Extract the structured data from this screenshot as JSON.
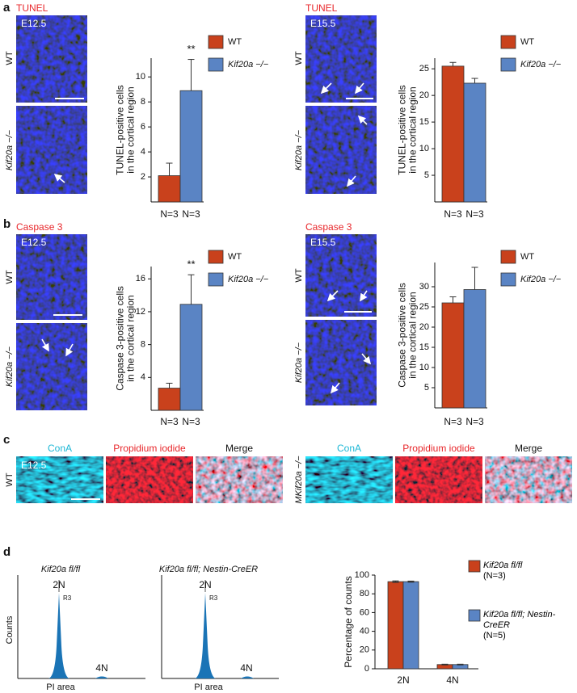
{
  "chart_data": [
    {
      "type": "bar",
      "categories": [
        "N=3",
        "N=3"
      ],
      "values": [
        2.1,
        8.9
      ],
      "errors": [
        1.0,
        2.5
      ],
      "colors": [
        "#c9411c",
        "#5a84c4"
      ],
      "legend": [
        "WT",
        "Kif20a −/−"
      ],
      "ylabel": [
        "TUNEL-positive cells",
        "in the cortical region"
      ],
      "ylim": [
        0,
        11.5
      ],
      "yticks": [
        2,
        4,
        6,
        8,
        10
      ],
      "annotation": "**"
    },
    {
      "type": "bar",
      "categories": [
        "N=3",
        "N=3"
      ],
      "values": [
        25.5,
        22.3
      ],
      "errors": [
        0.7,
        0.9
      ],
      "colors": [
        "#c9411c",
        "#5a84c4"
      ],
      "legend": [
        "WT",
        "Kif20a −/−"
      ],
      "ylabel": [
        "TUNEL-positive cells",
        "in the cortical region"
      ],
      "ylim": [
        0,
        27
      ],
      "yticks": [
        5,
        10,
        15,
        20,
        25
      ]
    },
    {
      "type": "bar",
      "categories": [
        "N=3",
        "N=3"
      ],
      "values": [
        2.7,
        12.9
      ],
      "errors": [
        0.6,
        3.6
      ],
      "colors": [
        "#c9411c",
        "#5a84c4"
      ],
      "legend": [
        "WT",
        "Kif20a −/−"
      ],
      "ylabel": [
        "Caspase 3-positive cells",
        "in the cortical region"
      ],
      "ylim": [
        0,
        17.5
      ],
      "yticks": [
        4,
        8,
        12,
        16
      ],
      "annotation": "**"
    },
    {
      "type": "bar",
      "categories": [
        "N=3",
        "N=3"
      ],
      "values": [
        26,
        29.3
      ],
      "errors": [
        1.5,
        5.5
      ],
      "colors": [
        "#c9411c",
        "#5a84c4"
      ],
      "legend": [
        "WT",
        "Kif20a −/−"
      ],
      "ylabel": [
        "Caspase 3-positive cells",
        "in the cortical region"
      ],
      "ylim": [
        0,
        36
      ],
      "yticks": [
        5,
        10,
        15,
        20,
        25,
        30
      ]
    },
    {
      "type": "bar",
      "categories": [
        "2N",
        "4N"
      ],
      "series": [
        {
          "name": "Kif20a fl/fl",
          "note": "(N=3)",
          "color": "#c9411c",
          "values": [
            93,
            4.5
          ],
          "errors": [
            0.8,
            0.4
          ]
        },
        {
          "name": "Kif20a fl/fl; Nestin-CreER",
          "note": "(N=5)",
          "color": "#5a84c4",
          "values": [
            93,
            4.5
          ],
          "errors": [
            0.6,
            0.4
          ]
        }
      ],
      "ylabel": [
        "Percentage of counts"
      ],
      "ylim": [
        0,
        100
      ],
      "yticks": [
        0,
        20,
        40,
        60,
        80,
        100
      ]
    }
  ],
  "figure": {
    "a": {
      "label": "a",
      "left": {
        "stain": "TUNEL",
        "stage": "E12.5",
        "rows": [
          "WT",
          "Kif20a −/−"
        ]
      },
      "right": {
        "stain": "TUNEL",
        "stage": "E15.5",
        "rows": [
          "WT",
          "Kif20a −/−"
        ]
      }
    },
    "b": {
      "label": "b",
      "left": {
        "stain": "Caspase 3",
        "stage": "E12.5",
        "rows": [
          "WT",
          "Kif20a −/−"
        ]
      },
      "right": {
        "stain": "Caspase 3",
        "stage": "E15.5",
        "rows": [
          "WT",
          "Kif20a −/−"
        ]
      }
    },
    "c": {
      "label": "c",
      "stage": "E12.5",
      "left": {
        "channels": [
          "ConA",
          "Propidium iodide",
          "Merge"
        ],
        "row": "WT"
      },
      "right": {
        "channels": [
          "ConA",
          "Propidium iodide",
          "Merge"
        ],
        "row": "MKif20a −/−"
      }
    },
    "d": {
      "label": "d",
      "histograms": [
        {
          "title": "Kif20a fl/fl",
          "ylabel": "Counts",
          "xlabel": "PI area",
          "peaks": [
            "2N",
            "4N"
          ],
          "gate": "R3"
        },
        {
          "title": "Kif20a fl/fl; Nestin-CreER",
          "xlabel": "PI area",
          "peaks": [
            "2N",
            "4N"
          ],
          "gate": "R3"
        }
      ]
    }
  }
}
